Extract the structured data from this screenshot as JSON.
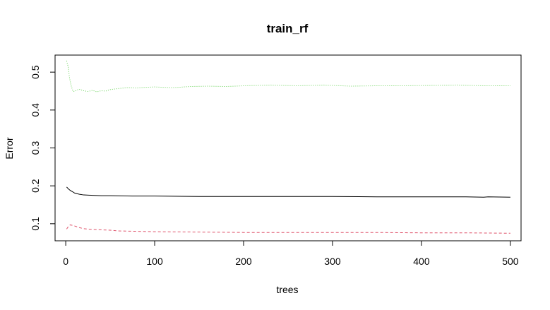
{
  "chart_data": {
    "type": "line",
    "title": "train_rf",
    "xlabel": "trees",
    "ylabel": "Error",
    "xlim": [
      -12,
      512
    ],
    "ylim": [
      0.055,
      0.545
    ],
    "x_ticks": [
      0,
      100,
      200,
      300,
      400,
      500
    ],
    "y_ticks": [
      0.1,
      0.2,
      0.3,
      0.4,
      0.5
    ],
    "x_tick_labels": [
      "0",
      "100",
      "200",
      "300",
      "400",
      "500"
    ],
    "y_tick_labels": [
      "0.1",
      "0.2",
      "0.3",
      "0.4",
      "0.5"
    ],
    "grid": false,
    "legend": "none",
    "series": [
      {
        "color": "#000000",
        "dash": "solid",
        "x": [
          1,
          3,
          5,
          8,
          10,
          15,
          20,
          30,
          40,
          50,
          75,
          100,
          150,
          200,
          250,
          300,
          350,
          370,
          375,
          400,
          450,
          470,
          475,
          500
        ],
        "y": [
          0.197,
          0.192,
          0.188,
          0.184,
          0.181,
          0.178,
          0.176,
          0.175,
          0.174,
          0.174,
          0.173,
          0.173,
          0.172,
          0.172,
          0.172,
          0.172,
          0.171,
          0.171,
          0.171,
          0.171,
          0.171,
          0.17,
          0.171,
          0.17
        ]
      },
      {
        "color": "#DF536B",
        "dash": "dashed",
        "x": [
          1,
          3,
          5,
          7,
          10,
          15,
          20,
          30,
          40,
          50,
          60,
          80,
          100,
          150,
          200,
          250,
          300,
          350,
          400,
          450,
          500
        ],
        "y": [
          0.086,
          0.093,
          0.097,
          0.096,
          0.094,
          0.09,
          0.087,
          0.085,
          0.084,
          0.083,
          0.081,
          0.08,
          0.079,
          0.078,
          0.077,
          0.077,
          0.077,
          0.077,
          0.076,
          0.076,
          0.075
        ]
      },
      {
        "color": "#61D04F",
        "dash": "dotted",
        "x": [
          1,
          3,
          4,
          6,
          8,
          10,
          12,
          15,
          20,
          25,
          30,
          35,
          40,
          45,
          50,
          60,
          70,
          80,
          90,
          100,
          120,
          140,
          160,
          180,
          200,
          230,
          260,
          290,
          320,
          350,
          380,
          410,
          440,
          470,
          500
        ],
        "y": [
          0.53,
          0.512,
          0.488,
          0.465,
          0.45,
          0.449,
          0.452,
          0.455,
          0.451,
          0.449,
          0.452,
          0.448,
          0.451,
          0.45,
          0.454,
          0.457,
          0.459,
          0.458,
          0.46,
          0.461,
          0.459,
          0.462,
          0.463,
          0.462,
          0.464,
          0.466,
          0.464,
          0.466,
          0.463,
          0.464,
          0.464,
          0.465,
          0.466,
          0.464,
          0.464
        ]
      }
    ]
  }
}
